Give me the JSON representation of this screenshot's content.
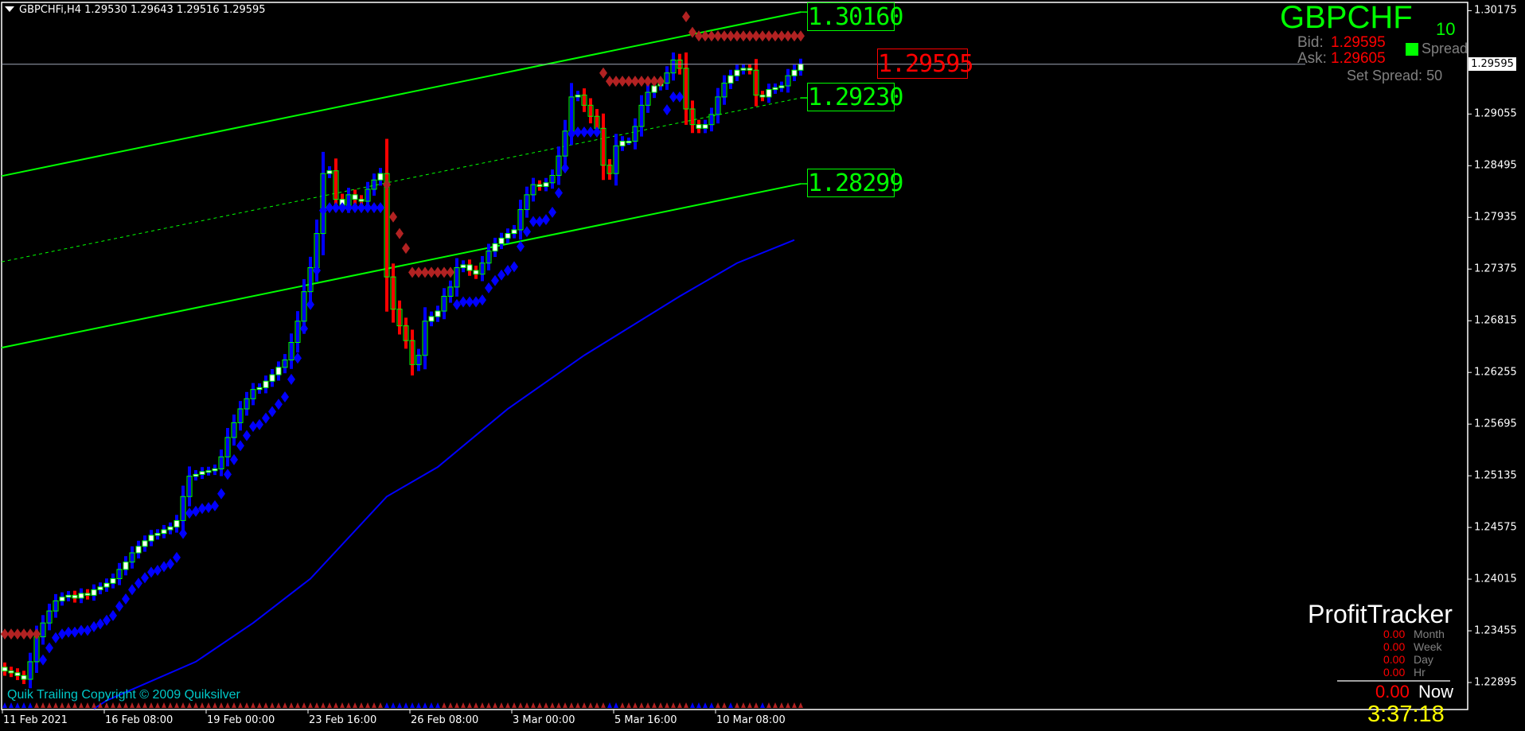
{
  "window": {
    "title": "GBPCHFi,H4  1.29530 1.29643 1.29516 1.29595"
  },
  "colors": {
    "background": "#000000",
    "bull_wick": "#0000ff",
    "bear_wick": "#ff0000",
    "body_outline": "#00ff00",
    "channel": "#00ff00",
    "ma": "#0000ff",
    "trail_up": "#0000ff",
    "trail_down": "#b22222",
    "current_price_line": "#a0a8b8"
  },
  "symbol_panel": {
    "symbol": "GBPCHF",
    "spread_value": "10",
    "spread_label": "Spread",
    "spread_indicator_color": "#00ff00",
    "bid_label": "Bid:",
    "bid_value": "1.29595",
    "ask_label": "Ask:",
    "ask_value": "1.29605",
    "set_spread": "Set Spread: 50"
  },
  "profit_tracker": {
    "title": "ProfitTracker",
    "rows": [
      {
        "value": "0.00",
        "label": "Month"
      },
      {
        "value": "0.00",
        "label": "Week"
      },
      {
        "value": "0.00",
        "label": "Day"
      },
      {
        "value": "0.00",
        "label": "Hr"
      }
    ],
    "now_value": "0.00",
    "now_label": "Now",
    "timer": "3:37:18"
  },
  "indicator_credit": "Quik Trailing   Copyright © 2009  Quiksilver",
  "current_price_label": "1.29595",
  "channel_labels": {
    "upper": "1.30160",
    "middle": "1.29230",
    "lower": "1.28299",
    "current": "1.29595"
  },
  "chart_data": {
    "type": "candlestick",
    "symbol": "GBPCHFi",
    "timeframe": "H4",
    "last_bar": {
      "open": 1.2953,
      "high": 1.29643,
      "low": 1.29516,
      "close": 1.29595
    },
    "ylim": [
      1.226,
      1.304
    ],
    "y_ticks": [
      "1.30175",
      "1.29055",
      "1.28495",
      "1.27935",
      "1.27375",
      "1.26815",
      "1.26255",
      "1.25695",
      "1.25135",
      "1.24575",
      "1.24015",
      "1.23455",
      "1.22895"
    ],
    "x_ticks": [
      {
        "label": "11 Feb 2021",
        "bar": 0
      },
      {
        "label": "16 Feb 08:00",
        "bar": 16
      },
      {
        "label": "19 Feb 00:00",
        "bar": 32
      },
      {
        "label": "23 Feb 16:00",
        "bar": 48
      },
      {
        "label": "26 Feb 08:00",
        "bar": 64
      },
      {
        "label": "3 Mar 00:00",
        "bar": 80
      },
      {
        "label": "5 Mar 16:00",
        "bar": 96
      },
      {
        "label": "10 Mar 08:00",
        "bar": 112
      }
    ],
    "close": [
      1.2302,
      1.23,
      1.2297,
      1.2293,
      1.2312,
      1.2339,
      1.2354,
      1.2367,
      1.2378,
      1.2382,
      1.2384,
      1.2381,
      1.2386,
      1.2384,
      1.239,
      1.2393,
      1.2397,
      1.2402,
      1.2412,
      1.242,
      1.243,
      1.2437,
      1.2443,
      1.2449,
      1.2451,
      1.2455,
      1.2458,
      1.2465,
      1.2491,
      1.2513,
      1.2515,
      1.2518,
      1.2519,
      1.2521,
      1.2534,
      1.2555,
      1.2571,
      1.2586,
      1.2597,
      1.2607,
      1.2609,
      1.2616,
      1.2623,
      1.2631,
      1.2639,
      1.2658,
      1.2681,
      1.2713,
      1.2739,
      1.2776,
      1.2841,
      1.2844,
      1.2813,
      1.2806,
      1.2818,
      1.2813,
      1.2811,
      1.2824,
      1.2834,
      1.2841,
      1.2729,
      1.2694,
      1.2676,
      1.266,
      1.2634,
      1.2644,
      1.2681,
      1.2686,
      1.2692,
      1.2708,
      1.2718,
      1.2739,
      1.2742,
      1.2736,
      1.2732,
      1.2744,
      1.2757,
      1.2765,
      1.2771,
      1.2776,
      1.278,
      1.2802,
      1.2818,
      1.2829,
      1.2827,
      1.2831,
      1.2839,
      1.286,
      1.2887,
      1.2924,
      1.2926,
      1.2915,
      1.2903,
      1.289,
      1.285,
      1.2841,
      1.2871,
      1.2876,
      1.2876,
      1.2892,
      1.2915,
      1.2929,
      1.2936,
      1.2939,
      1.295,
      1.2964,
      1.2955,
      1.2911,
      1.2894,
      1.289,
      1.2894,
      1.2905,
      1.2924,
      1.2939,
      1.2947,
      1.2953,
      1.2955,
      1.2953,
      1.2926,
      1.2924,
      1.2932,
      1.2934,
      1.2936,
      1.2947,
      1.2953,
      1.29595
    ],
    "moving_average": [
      {
        "bar": 14,
        "value": 1.226
      },
      {
        "bar": 16,
        "value": 1.227
      },
      {
        "bar": 30,
        "value": 1.2312
      },
      {
        "bar": 39,
        "value": 1.2354
      },
      {
        "bar": 48,
        "value": 1.2402
      },
      {
        "bar": 60,
        "value": 1.2491
      },
      {
        "bar": 68,
        "value": 1.2523
      },
      {
        "bar": 79,
        "value": 1.2586
      },
      {
        "bar": 91,
        "value": 1.2644
      },
      {
        "bar": 106,
        "value": 1.2708
      },
      {
        "bar": 115,
        "value": 1.2744
      },
      {
        "bar": 124,
        "value": 1.2769
      }
    ],
    "regression_channel": {
      "start_bar": 0,
      "end_bar": 125,
      "upper": [
        1.2839,
        1.3016
      ],
      "middle": [
        1.2746,
        1.2923
      ],
      "lower": [
        1.2653,
        1.28299
      ]
    },
    "trail_distance": 0.004,
    "signal_row": [
      {
        "color": "#0000ff",
        "from": 0,
        "to": 4
      },
      {
        "color": "#b22222",
        "from": 5,
        "to": 59
      },
      {
        "color": "#0000ff",
        "from": 60,
        "to": 68
      },
      {
        "color": "#b22222",
        "from": 69,
        "to": 94
      },
      {
        "color": "#0000ff",
        "from": 95,
        "to": 96
      },
      {
        "color": "#b22222",
        "from": 97,
        "to": 107
      },
      {
        "color": "#0000ff",
        "from": 108,
        "to": 111
      },
      {
        "color": "#b22222",
        "from": 112,
        "to": 113
      },
      {
        "color": "#0000ff",
        "from": 114,
        "to": 114
      },
      {
        "color": "#b22222",
        "from": 115,
        "to": 118
      },
      {
        "color": "#0000ff",
        "from": 119,
        "to": 119
      },
      {
        "color": "#b22222",
        "from": 120,
        "to": 125
      }
    ],
    "current_price": 1.29595
  }
}
